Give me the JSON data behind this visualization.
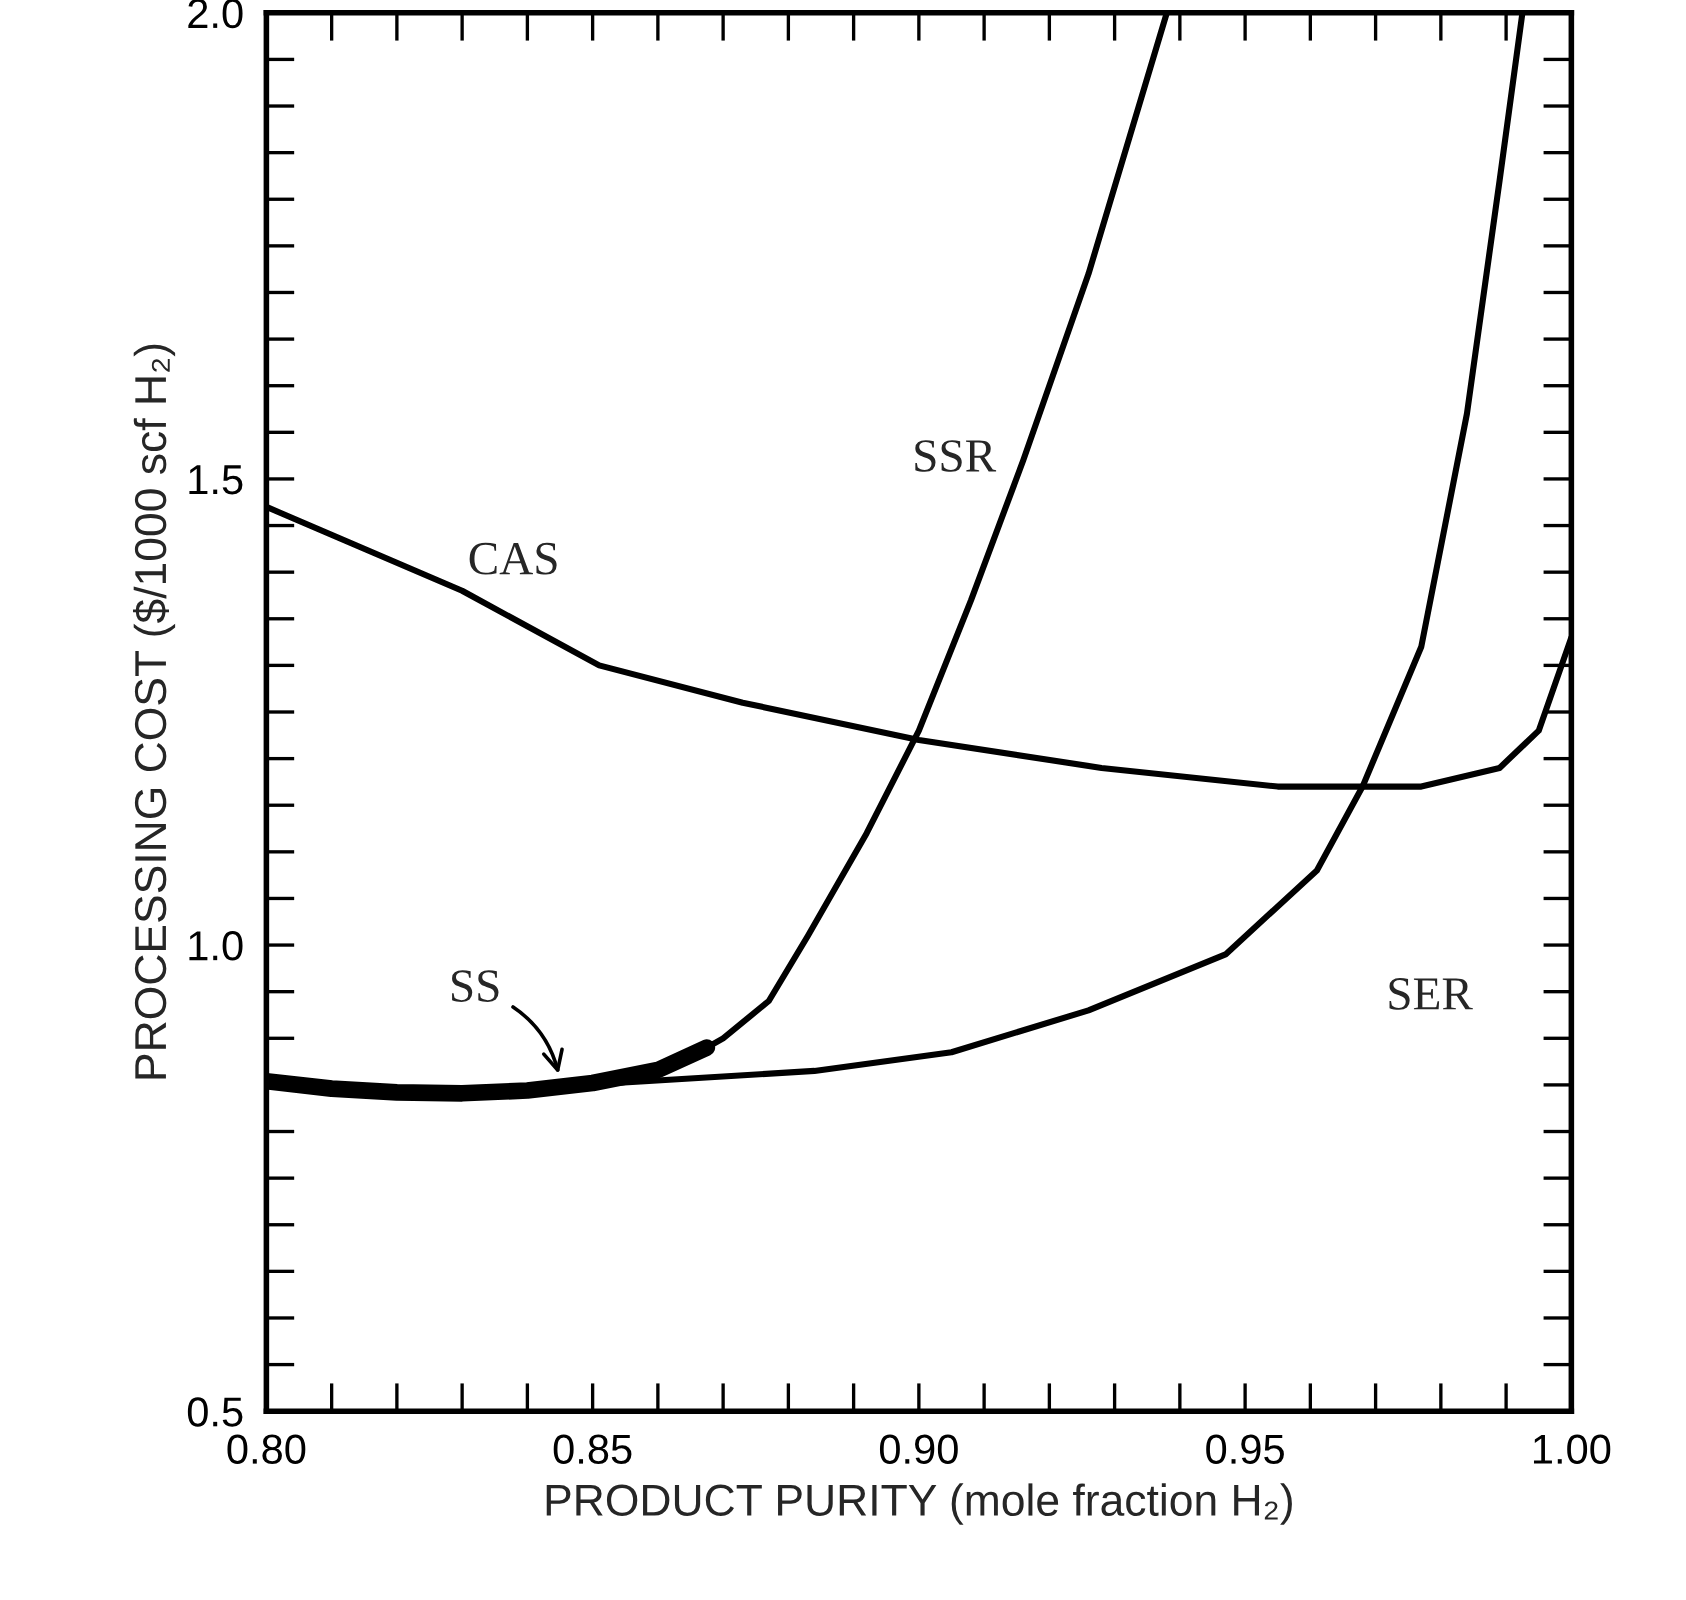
{
  "chart_data": {
    "type": "line",
    "xlabel": "PRODUCT PURITY (mole fraction H₂)",
    "ylabel": "PROCESSING COST ($/1000 scf H₂)",
    "xlim": [
      0.8,
      1.0
    ],
    "ylim": [
      0.5,
      2.0
    ],
    "xticks": [
      {
        "value": 0.8,
        "label": "0.80"
      },
      {
        "value": 0.85,
        "label": "0.85"
      },
      {
        "value": 0.9,
        "label": "0.90"
      },
      {
        "value": 0.95,
        "label": "0.95"
      },
      {
        "value": 1.0,
        "label": "1.00"
      }
    ],
    "yticks": [
      {
        "value": 0.5,
        "label": "0.5"
      },
      {
        "value": 1.0,
        "label": "1.0"
      },
      {
        "value": 1.5,
        "label": "1.5"
      },
      {
        "value": 2.0,
        "label": "2.0"
      }
    ],
    "grid": false,
    "marker": "none",
    "line_style": "solid",
    "series": [
      {
        "name": "CAS",
        "color": "#000000",
        "x": [
          0.8,
          0.83,
          0.851,
          0.873,
          0.9,
          0.928,
          0.955,
          0.977,
          0.989,
          0.995,
          1.0
        ],
        "values": [
          1.47,
          1.38,
          1.3,
          1.26,
          1.22,
          1.19,
          1.17,
          1.17,
          1.19,
          1.23,
          1.33
        ]
      },
      {
        "name": "SSR",
        "color": "#000000",
        "x": [
          0.8675,
          0.87,
          0.877,
          0.883,
          0.892,
          0.9,
          0.908,
          0.916,
          0.926,
          0.938
        ],
        "values": [
          0.89,
          0.9,
          0.94,
          1.01,
          1.12,
          1.23,
          1.37,
          1.52,
          1.72,
          2.0
        ]
      },
      {
        "name": "SER",
        "color": "#000000",
        "x": [
          0.8,
          0.83,
          0.858,
          0.884,
          0.905,
          0.926,
          0.947,
          0.961,
          0.968,
          0.977,
          0.984,
          0.989,
          0.9925
        ],
        "values": [
          0.854,
          0.842,
          0.854,
          0.865,
          0.885,
          0.93,
          0.99,
          1.08,
          1.17,
          1.32,
          1.57,
          1.82,
          2.0
        ]
      },
      {
        "name": "SS",
        "color": "#000000",
        "x": [
          0.8,
          0.81,
          0.82,
          0.83,
          0.84,
          0.85,
          0.86,
          0.8675
        ],
        "values": [
          0.854,
          0.846,
          0.842,
          0.841,
          0.844,
          0.852,
          0.866,
          0.89
        ]
      }
    ]
  }
}
